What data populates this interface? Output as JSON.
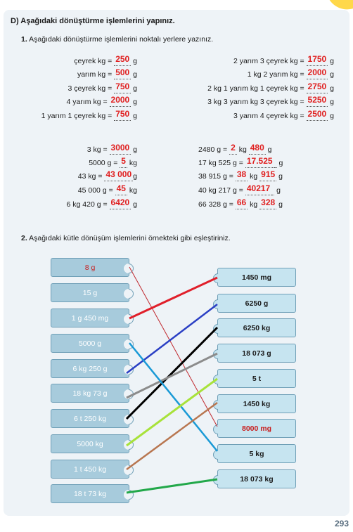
{
  "section_title": "D) Aşağıdaki dönüştürme işlemlerini yapınız.",
  "q1": {
    "num": "1.",
    "text": "Aşağıdaki dönüştürme işlemlerini noktalı yerlere yazınız."
  },
  "left_rows": [
    {
      "pre": "çeyrek kg = ",
      "ans": "250",
      "post": " g"
    },
    {
      "pre": "yarım kg = ",
      "ans": "500",
      "post": " g"
    },
    {
      "pre": "3 çeyrek kg = ",
      "ans": "750",
      "post": " g"
    },
    {
      "pre": "4 yarım kg = ",
      "ans": "2000",
      "post": " g"
    },
    {
      "pre": "1 yarım 1 çeyrek kg = ",
      "ans": "750",
      "post": " g"
    }
  ],
  "right_rows": [
    {
      "pre": "2 yarım 3 çeyrek kg = ",
      "ans": "1750",
      "post": " g"
    },
    {
      "pre": "1 kg 2 yarım kg = ",
      "ans": "2000",
      "post": " g"
    },
    {
      "pre": "2 kg 1 yarım kg 1 çeyrek kg = ",
      "ans": "2750",
      "post": " g"
    },
    {
      "pre": "3 kg 3 yarım kg 3 çeyrek kg = ",
      "ans": "5250",
      "post": " g"
    },
    {
      "pre": "3 yarım 4 çeyrek kg = ",
      "ans": "2500",
      "post": " g"
    }
  ],
  "left_rows2": [
    {
      "pre": "3 kg = ",
      "ans": "3000",
      "post": " g"
    },
    {
      "pre": "5000 g = ",
      "ans": "5",
      "post": " kg"
    },
    {
      "pre": "43 kg = ",
      "ans": "43 000",
      "post": "g"
    },
    {
      "pre": "45 000 g = ",
      "ans": "45",
      "post": " kg"
    },
    {
      "pre": "6 kg 420 g = ",
      "ans": "6420",
      "post": " g"
    }
  ],
  "right_rows2": [
    {
      "pre": "2480 g = ",
      "ans": "2",
      "mid": " kg ",
      "ans2": "480",
      "post": " g"
    },
    {
      "pre": "17 kg 525 g = ",
      "ans": "17.525",
      "mid": "",
      "ans2": "",
      "post": " g"
    },
    {
      "pre": "38 915 g = ",
      "ans": "38",
      "mid": " kg ",
      "ans2": "915",
      "post": " g"
    },
    {
      "pre": "40 kg 217 g = ",
      "ans": "40217",
      "mid": "",
      "ans2": "",
      "post": " g"
    },
    {
      "pre": "66 328 g = ",
      "ans": "66",
      "mid": " kg ",
      "ans2": "328",
      "post": " g"
    }
  ],
  "q2": {
    "num": "2.",
    "text": "Aşağıdaki kütle dönüşüm işlemlerini örnekteki gibi eşleştiriniz."
  },
  "left_boxes": [
    "8 g",
    "15 g",
    "1 g 450 mg",
    "5000 g",
    "6 kg 250 g",
    "18 kg 73 g",
    "6 t 250 kg",
    "5000 kg",
    "1 t 450 kg",
    "18 t 73 kg"
  ],
  "right_boxes": [
    "1450 mg",
    "6250 g",
    "6250 kg",
    "18 073 g",
    "5 t",
    "1450 kg",
    "8000 mg",
    "5 kg",
    "18 073 kg"
  ],
  "line_colors": {
    "red": "#e01f2a",
    "blue": "#2a3fc4",
    "black": "#000000",
    "gray": "#8c8c8c",
    "cyan": "#1a9ad6",
    "lime": "#a8e23a",
    "brown": "#b87650",
    "green": "#22a84a",
    "thin_red": "#c0282e"
  },
  "page_number": "293"
}
